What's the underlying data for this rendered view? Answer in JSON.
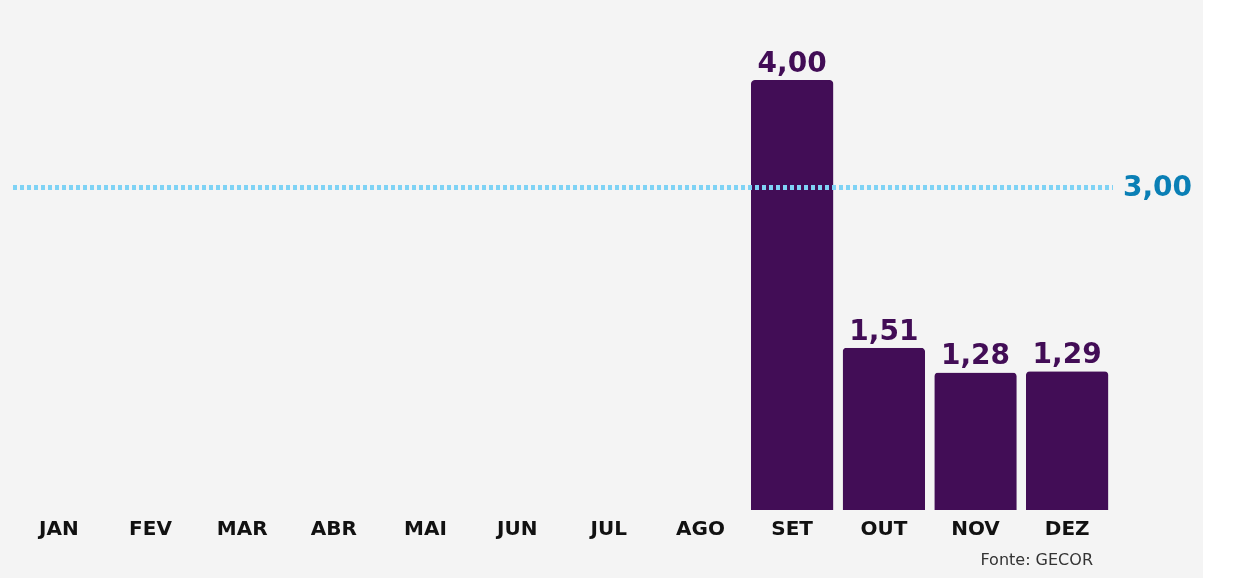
{
  "chart_data": {
    "type": "bar",
    "categories": [
      "JAN",
      "FEV",
      "MAR",
      "ABR",
      "MAI",
      "JUN",
      "JUL",
      "AGO",
      "SET",
      "OUT",
      "NOV",
      "DEZ"
    ],
    "values": [
      null,
      null,
      null,
      null,
      null,
      null,
      null,
      null,
      4.0,
      1.51,
      1.28,
      1.29
    ],
    "value_labels": [
      null,
      null,
      null,
      null,
      null,
      null,
      null,
      null,
      "4,00",
      "1,51",
      "1,28",
      "1,29"
    ],
    "color": "#420d56",
    "ref_lines": [
      {
        "axis": "y",
        "value": 3.0,
        "label": "3,00",
        "color": "#7fd3f5",
        "line_style": "dotted"
      }
    ],
    "annotations": [
      "Fonte: GECOR"
    ]
  }
}
